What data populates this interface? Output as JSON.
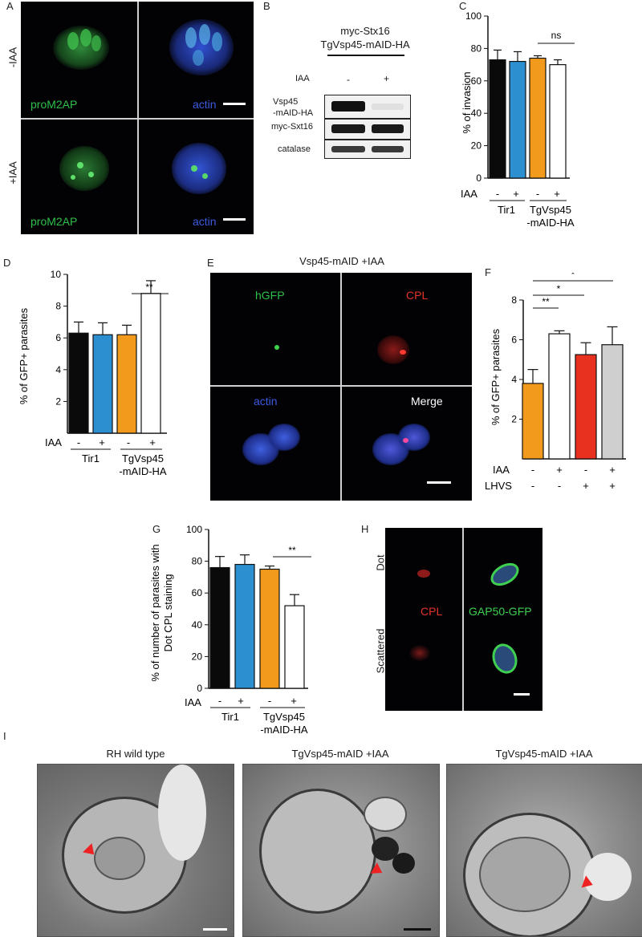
{
  "panel_labels": {
    "A": "A",
    "B": "B",
    "C": "C",
    "D": "D",
    "E": "E",
    "F": "F",
    "G": "G",
    "H": "H",
    "I": "I"
  },
  "panelA": {
    "rows": [
      "-IAA",
      "+IAA"
    ],
    "labels": [
      "proM2AP",
      "actin",
      "proM2AP",
      "actin"
    ]
  },
  "panelB": {
    "title_line1": "myc-Stx16",
    "title_line2": "TgVsp45-mAID-HA",
    "iaa_label": "IAA",
    "iaa_minus": "-",
    "iaa_plus": "+",
    "row1_line1": "Vsp45",
    "row1_line2": "-mAID-HA",
    "row2": "myc-Sxt16",
    "row3": "catalase"
  },
  "panelC": {
    "ylabel": "% of invasion",
    "iaa_label": "IAA",
    "significance": "ns",
    "group1": "Tir1",
    "group2_line1": "TgVsp45",
    "group2_line2": "-mAID-HA",
    "iaa_signs": [
      "-",
      "+",
      "-",
      "+"
    ]
  },
  "panelD": {
    "ylabel": "% of  GFP+ parasites",
    "iaa_label": "IAA",
    "significance": "**",
    "group1": "Tir1",
    "group2_line1": "TgVsp45",
    "group2_line2": "-mAID-HA",
    "iaa_signs": [
      "-",
      "+",
      "-",
      "+"
    ]
  },
  "panelE": {
    "title": "Vsp45-mAID +IAA",
    "labels": [
      "hGFP",
      "CPL",
      "actin",
      "Merge"
    ]
  },
  "panelF": {
    "ylabel": "% of  GFP+ parasites",
    "iaa_label": "IAA",
    "lhvs_label": "LHVS",
    "iaa_signs": [
      "-",
      "+",
      "-",
      "+"
    ],
    "lhvs_signs": [
      "-",
      "-",
      "+",
      "+"
    ],
    "sig1": "**",
    "sig2": "*",
    "sig3": "*"
  },
  "panelG": {
    "ylabel_line1": "% of number of parasites with",
    "ylabel_line2": "Dot CPL staining",
    "iaa_label": "IAA",
    "significance": "**",
    "group1": "Tir1",
    "group2_line1": "TgVsp45",
    "group2_line2": "-mAID-HA",
    "iaa_signs": [
      "-",
      "+",
      "-",
      "+"
    ]
  },
  "panelH": {
    "rows": [
      "Dot",
      "Scattered"
    ],
    "label_red": "CPL",
    "label_green": "GAP50-GFP"
  },
  "panelI": {
    "titles": [
      "RH wild type",
      "TgVsp45-mAID +IAA",
      "TgVsp45-mAID +IAA"
    ]
  },
  "colors": {
    "black_bar": "#0a0a0a",
    "blue_bar": "#2b8fd0",
    "orange_bar": "#f29a1b",
    "white_bar": "#ffffff",
    "red_bar": "#e8321f",
    "grey_bar": "#cfcfcf",
    "green_label": "#2fc04a",
    "blue_label": "#3d5be0",
    "red_label": "#e4322a"
  },
  "chart_data": [
    {
      "panel": "C",
      "type": "bar",
      "categories": [
        "Tir1 -IAA",
        "Tir1 +IAA",
        "TgVsp45-mAID-HA -IAA",
        "TgVsp45-mAID-HA +IAA"
      ],
      "values": [
        73,
        72,
        74,
        70
      ],
      "errors": [
        6,
        6,
        1.5,
        3
      ],
      "ylabel": "% of invasion",
      "ylim": [
        0,
        100
      ],
      "yticks": [
        0,
        20,
        40,
        60,
        80,
        100
      ],
      "bar_colors": [
        "#0a0a0a",
        "#2b8fd0",
        "#f29a1b",
        "#ffffff"
      ]
    },
    {
      "panel": "D",
      "type": "bar",
      "categories": [
        "Tir1 -IAA",
        "Tir1 +IAA",
        "TgVsp45-mAID-HA -IAA",
        "TgVsp45-mAID-HA +IAA"
      ],
      "values": [
        6.3,
        6.2,
        6.2,
        8.8
      ],
      "errors": [
        0.7,
        0.75,
        0.6,
        0.8
      ],
      "ylabel": "% of  GFP+ parasites",
      "ylim": [
        0,
        10
      ],
      "yticks": [
        2,
        4,
        6,
        8,
        10
      ],
      "bar_colors": [
        "#0a0a0a",
        "#2b8fd0",
        "#f29a1b",
        "#ffffff"
      ]
    },
    {
      "panel": "F",
      "type": "bar",
      "categories": [
        "-IAA -LHVS",
        "+IAA -LHVS",
        "-IAA +LHVS",
        "+IAA +LHVS"
      ],
      "values": [
        3.8,
        6.3,
        5.25,
        5.75
      ],
      "errors": [
        0.7,
        0.15,
        0.6,
        0.9
      ],
      "ylabel": "% of  GFP+ parasites",
      "ylim": [
        0,
        8
      ],
      "yticks": [
        2,
        4,
        6,
        8
      ],
      "bar_colors": [
        "#f29a1b",
        "#ffffff",
        "#e8321f",
        "#cfcfcf"
      ]
    },
    {
      "panel": "G",
      "type": "bar",
      "categories": [
        "Tir1 -IAA",
        "Tir1 +IAA",
        "TgVsp45-mAID-HA -IAA",
        "TgVsp45-mAID-HA +IAA"
      ],
      "values": [
        76,
        78,
        75,
        52
      ],
      "errors": [
        7,
        6,
        2,
        7
      ],
      "ylabel": "% of number of parasites with Dot CPL staining",
      "ylim": [
        0,
        100
      ],
      "yticks": [
        0,
        20,
        40,
        60,
        80,
        100
      ],
      "bar_colors": [
        "#0a0a0a",
        "#2b8fd0",
        "#f29a1b",
        "#ffffff"
      ]
    }
  ]
}
